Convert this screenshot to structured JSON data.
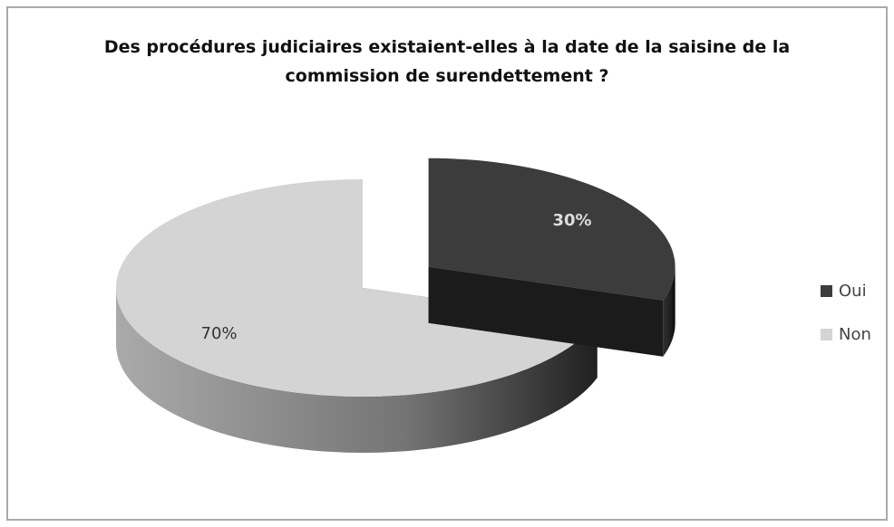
{
  "chart_data": {
    "type": "pie",
    "title": "Des procédures judiciaires existaient-elles à la date de la saisine de la commission de surendettement ?",
    "categories": [
      "Oui",
      "Non"
    ],
    "values": [
      30,
      70
    ],
    "value_labels": [
      "30%",
      "70%"
    ],
    "colors": [
      "#3c3c3c",
      "#d4d4d4"
    ],
    "legend": "right",
    "explode": [
      true,
      false
    ]
  }
}
